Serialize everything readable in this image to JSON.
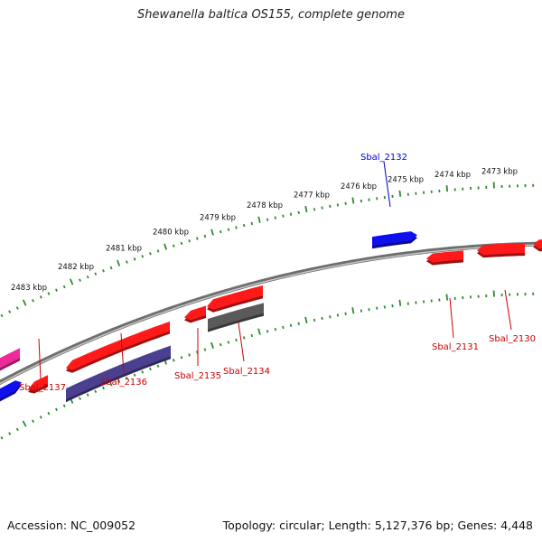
{
  "header": {
    "title": "Shewanella baltica OS155, complete genome"
  },
  "footer": {
    "accession": "Accession: NC_009052",
    "summary": "Topology: circular; Length: 5,127,376 bp; Genes: 4,448"
  },
  "colors": {
    "backbone": "#8c8c8c",
    "tick": "#2e8b2e",
    "forward_label": "#0000cc",
    "reverse_label": "#cc0000",
    "gene_red": "#ff1a1a",
    "gene_blue": "#1010ee",
    "gene_magenta": "#ee2a9a",
    "gene_purple": "#4b4090",
    "gene_gray": "#5a5a5a"
  },
  "scale": {
    "labels": [
      "2483 kbp",
      "2482 kbp",
      "2481 kbp",
      "2480 kbp",
      "2479 kbp",
      "2478 kbp",
      "2477 kbp",
      "2476 kbp",
      "2475 kbp",
      "2474 kbp",
      "2473 kbp"
    ]
  },
  "genes": [
    {
      "label": "Sbal_2132",
      "strand": "forward"
    },
    {
      "label": "Sbal_2137",
      "strand": "reverse"
    },
    {
      "label": "Sbal_2136",
      "strand": "reverse"
    },
    {
      "label": "Sbal_2135",
      "strand": "reverse"
    },
    {
      "label": "Sbal_2134",
      "strand": "reverse"
    },
    {
      "label": "Sbal_2131",
      "strand": "reverse"
    },
    {
      "label": "Sbal_2130",
      "strand": "reverse"
    }
  ]
}
